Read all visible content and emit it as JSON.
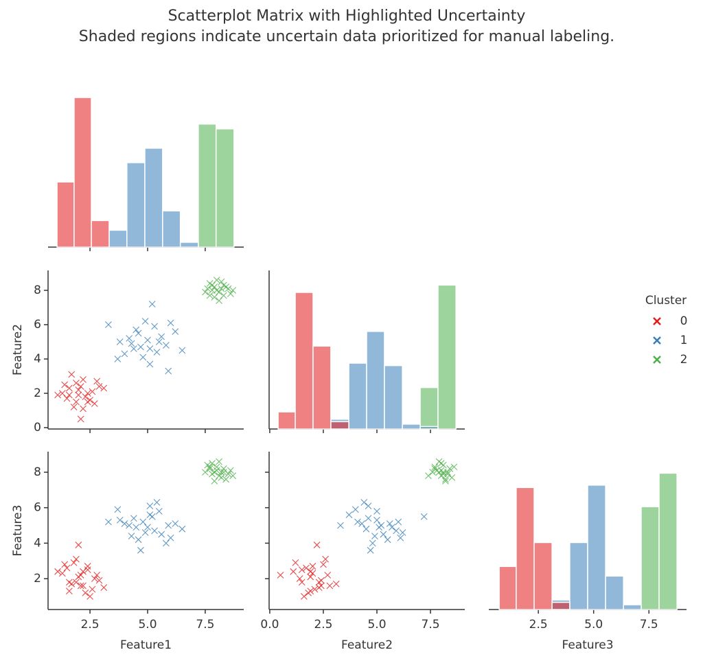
{
  "chart_data": {
    "type": "pairplot",
    "title": "Scatterplot Matrix with Highlighted Uncertainty",
    "subtitle": "Shaded regions indicate uncertain data prioritized for manual labeling.",
    "variables": [
      "Feature1",
      "Feature2",
      "Feature3"
    ],
    "marker": "x",
    "legend_title": "Cluster",
    "legend_position": "right",
    "axes": {
      "Feature1": {
        "xlim": [
          0.68,
          9.17
        ],
        "xticks": [
          2.5,
          {
            "value": 5,
            "label": "5.0"
          },
          7.5
        ]
      },
      "Feature2": {
        "xlim": [
          -0.03,
          9.1
        ],
        "xticks": [
          {
            "value": 0,
            "label": "0.0"
          },
          2.5,
          {
            "value": 5,
            "label": "5.0"
          },
          7.5
        ],
        "ylim": [
          -0.08,
          9.16
        ],
        "yticks": [
          0,
          2,
          4,
          6,
          8
        ]
      },
      "Feature3": {
        "xlim": [
          0.26,
          9.2
        ],
        "xticks": [
          2.5,
          {
            "value": 5,
            "label": "5.0"
          },
          7.5
        ],
        "ylim": [
          0.26,
          9.16
        ],
        "yticks": [
          2,
          4,
          6,
          8
        ]
      }
    },
    "series": [
      {
        "name": "0",
        "color": "#e41a1c",
        "points": [
          [
            2.0,
            1.9,
            2.1
          ],
          [
            1.6,
            2.3,
            1.8
          ],
          [
            2.4,
            1.5,
            2.5
          ],
          [
            1.3,
            2.0,
            2.3
          ],
          [
            2.2,
            2.8,
            1.6
          ],
          [
            1.8,
            1.2,
            2.9
          ],
          [
            2.6,
            2.1,
            1.4
          ],
          [
            1.5,
            1.7,
            2.6
          ],
          [
            2.9,
            2.4,
            1.9
          ],
          [
            2.1,
            0.5,
            2.2
          ],
          [
            1.9,
            2.6,
            3.1
          ],
          [
            2.3,
            1.8,
            1.2
          ],
          [
            1.1,
            1.9,
            2.4
          ],
          [
            2.7,
            1.4,
            2.0
          ],
          [
            1.7,
            3.1,
            1.7
          ],
          [
            2.0,
            2.2,
            3.9
          ],
          [
            2.5,
            1.6,
            1.0
          ],
          [
            1.4,
            2.5,
            2.8
          ],
          [
            3.1,
            2.3,
            1.5
          ],
          [
            2.2,
            1.1,
            2.4
          ],
          [
            1.6,
            1.9,
            1.3
          ],
          [
            2.8,
            2.7,
            2.2
          ],
          [
            1.9,
            1.5,
            1.8
          ],
          [
            2.4,
            2.0,
            2.7
          ],
          [
            2.1,
            2.4,
            1.6
          ]
        ]
      },
      {
        "name": "1",
        "color": "#377eb8",
        "points": [
          [
            5.0,
            5.1,
            4.9
          ],
          [
            4.4,
            4.6,
            5.4
          ],
          [
            5.6,
            5.3,
            4.5
          ],
          [
            4.8,
            4.1,
            5.2
          ],
          [
            5.3,
            5.9,
            4.7
          ],
          [
            3.7,
            4.0,
            5.9
          ],
          [
            6.2,
            5.6,
            5.1
          ],
          [
            4.6,
            5.5,
            4.2
          ],
          [
            5.1,
            3.7,
            5.6
          ],
          [
            5.8,
            4.8,
            4.0
          ],
          [
            4.2,
            5.2,
            5.0
          ],
          [
            5.4,
            4.4,
            6.3
          ],
          [
            4.9,
            6.2,
            4.6
          ],
          [
            6.5,
            4.5,
            4.8
          ],
          [
            3.8,
            5.0,
            5.3
          ],
          [
            5.2,
            7.2,
            5.5
          ],
          [
            4.7,
            4.7,
            3.6
          ],
          [
            5.9,
            3.3,
            5.0
          ],
          [
            4.3,
            4.9,
            4.4
          ],
          [
            5.5,
            5.0,
            5.8
          ],
          [
            4.0,
            4.3,
            5.1
          ],
          [
            6.0,
            6.1,
            4.3
          ],
          [
            5.1,
            4.6,
            6.1
          ],
          [
            4.5,
            5.7,
            4.9
          ],
          [
            3.3,
            6.0,
            5.2
          ]
        ]
      },
      {
        "name": "2",
        "color": "#4daf4a",
        "points": [
          [
            8.0,
            8.0,
            8.1
          ],
          [
            7.8,
            8.3,
            7.9
          ],
          [
            8.3,
            7.7,
            8.2
          ],
          [
            7.6,
            8.1,
            8.4
          ],
          [
            8.2,
            8.5,
            7.7
          ],
          [
            7.9,
            7.6,
            8.0
          ],
          [
            8.5,
            8.1,
            7.9
          ],
          [
            8.1,
            7.9,
            8.6
          ],
          [
            7.7,
            8.4,
            8.2
          ],
          [
            8.4,
            8.2,
            7.6
          ],
          [
            7.5,
            7.9,
            8.0
          ],
          [
            8.0,
            8.6,
            8.3
          ],
          [
            8.6,
            7.8,
            8.1
          ],
          [
            7.9,
            8.2,
            7.5
          ],
          [
            8.1,
            7.4,
            7.8
          ],
          [
            7.8,
            8.0,
            8.5
          ],
          [
            8.3,
            8.3,
            8.0
          ],
          [
            8.7,
            8.0,
            7.8
          ],
          [
            7.7,
            7.7,
            8.3
          ],
          [
            8.2,
            8.1,
            8.0
          ]
        ]
      }
    ],
    "histograms": [
      {
        "bins": [
          1.07,
          1.81,
          2.56,
          3.33,
          4.1,
          4.88,
          5.65,
          6.42,
          7.2,
          7.97,
          8.75
        ],
        "ylim": [
          0,
          66
        ],
        "counts": [
          [
            27,
            62,
            11,
            0,
            0,
            0,
            0,
            0,
            0,
            0
          ],
          [
            0,
            0,
            0,
            7,
            35,
            41,
            15,
            2,
            0,
            0
          ],
          [
            0,
            0,
            0,
            0,
            0,
            0,
            0,
            0,
            51,
            49
          ]
        ]
      },
      {
        "bins": [
          0.39,
          1.19,
          2.02,
          2.85,
          3.69,
          4.52,
          5.35,
          6.19,
          7.02,
          7.85,
          8.69
        ],
        "ylim": [
          0,
          65
        ],
        "counts": [
          [
            7,
            56,
            34,
            3,
            0,
            0,
            0,
            0,
            0,
            0
          ],
          [
            0,
            0,
            0,
            4,
            27,
            40,
            26,
            2,
            1,
            0
          ],
          [
            0,
            0,
            0,
            0,
            0,
            0,
            0,
            0,
            17,
            59
          ]
        ]
      },
      {
        "bins": [
          0.73,
          1.5,
          2.31,
          3.12,
          3.92,
          4.73,
          5.54,
          6.35,
          7.15,
          7.96,
          8.77
        ],
        "ylim": [
          0,
          66
        ],
        "counts": [
          [
            18,
            51,
            28,
            3,
            0,
            0,
            0,
            0,
            0,
            0
          ],
          [
            0,
            0,
            0,
            4,
            28,
            52,
            14,
            2,
            0,
            0
          ],
          [
            0,
            0,
            0,
            0,
            0,
            0,
            0,
            0,
            43,
            57
          ]
        ]
      }
    ]
  }
}
